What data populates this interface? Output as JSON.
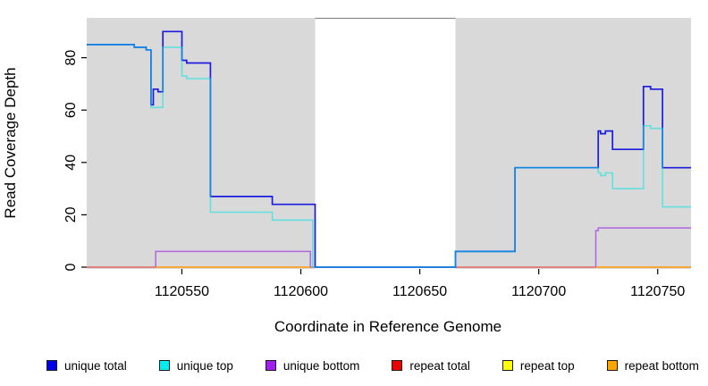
{
  "chart_data": {
    "type": "line",
    "subtype": "step-coverage",
    "xlabel": "Coordinate in Reference Genome",
    "ylabel": "Read Coverage Depth",
    "xlim": [
      1120510,
      1120764
    ],
    "ylim": [
      0,
      95
    ],
    "x_ticks": [
      1120550,
      1120600,
      1120650,
      1120700,
      1120750
    ],
    "x_tick_labels": [
      "1120550",
      "1120600",
      "1120650",
      "1120700",
      "1120750"
    ],
    "y_ticks": [
      0,
      20,
      40,
      60,
      80
    ],
    "y_tick_labels": [
      "0",
      "20",
      "40",
      "60",
      "80"
    ],
    "grid": false,
    "plot_bg_color": "#d9d9d9",
    "gap_region": {
      "from": 1120606,
      "to": 1120665,
      "fill": "#ffffff",
      "top_border_color": "#8a8a8a"
    },
    "series": [
      {
        "name": "repeat top",
        "color": "#ffff00",
        "width": 1.3,
        "opacity": 1,
        "paths": [
          [
            [
              1120510,
              0
            ],
            [
              1120764,
              0
            ]
          ]
        ]
      },
      {
        "name": "repeat total",
        "color": "#e04868",
        "width": 1.3,
        "opacity": 1,
        "paths": [
          [
            [
              1120510,
              0
            ],
            [
              1120764,
              0
            ]
          ]
        ]
      },
      {
        "name": "repeat bottom",
        "color": "#ff9f1a",
        "width": 1.6,
        "opacity": 1,
        "paths": [
          [
            [
              1120539,
              0
            ],
            [
              1120604,
              0
            ]
          ],
          [
            [
              1120724,
              0
            ],
            [
              1120764,
              0
            ]
          ]
        ]
      },
      {
        "name": "unique bottom",
        "color": "#b066e0",
        "width": 1.5,
        "opacity": 1,
        "paths": [
          [
            [
              1120539,
              0
            ],
            [
              1120539,
              6
            ],
            [
              1120604,
              6
            ],
            [
              1120604,
              0
            ]
          ],
          [
            [
              1120724,
              0
            ],
            [
              1120724,
              14
            ],
            [
              1120725,
              14
            ],
            [
              1120725,
              15
            ],
            [
              1120764,
              15
            ]
          ]
        ]
      },
      {
        "name": "unique total",
        "color": "#1c1cdf",
        "width": 1.7,
        "opacity": 1,
        "paths": [
          [
            [
              1120510,
              85
            ],
            [
              1120530,
              84
            ],
            [
              1120535,
              83
            ],
            [
              1120537,
              62
            ],
            [
              1120538,
              68
            ],
            [
              1120540,
              67
            ],
            [
              1120542,
              90
            ],
            [
              1120550,
              79
            ],
            [
              1120552,
              78
            ],
            [
              1120562,
              27
            ],
            [
              1120588,
              24
            ],
            [
              1120606,
              0
            ],
            [
              1120665,
              6
            ],
            [
              1120690,
              38
            ],
            [
              1120725,
              52
            ],
            [
              1120726,
              51
            ],
            [
              1120728,
              52
            ],
            [
              1120731,
              45
            ],
            [
              1120744,
              69
            ],
            [
              1120747,
              68
            ],
            [
              1120752,
              38
            ],
            [
              1120764,
              38
            ]
          ]
        ]
      },
      {
        "name": "unique top",
        "color": "#00e6e6",
        "width": 1.6,
        "opacity": 0.55,
        "paths": [
          [
            [
              1120510,
              85
            ],
            [
              1120530,
              84
            ],
            [
              1120535,
              83
            ],
            [
              1120537,
              61
            ],
            [
              1120542,
              84
            ],
            [
              1120550,
              73
            ],
            [
              1120552,
              72
            ],
            [
              1120562,
              21
            ],
            [
              1120588,
              18
            ],
            [
              1120605,
              0
            ],
            [
              1120665,
              6
            ],
            [
              1120690,
              38
            ],
            [
              1120725,
              36
            ],
            [
              1120726,
              35
            ],
            [
              1120728,
              36
            ],
            [
              1120731,
              30
            ],
            [
              1120744,
              54
            ],
            [
              1120747,
              53
            ],
            [
              1120752,
              23
            ],
            [
              1120764,
              23
            ]
          ]
        ]
      }
    ],
    "legend": {
      "position": "bottom",
      "items": [
        {
          "label": "unique total",
          "color": "#0000ee"
        },
        {
          "label": "unique top",
          "color": "#00eeee"
        },
        {
          "label": "unique bottom",
          "color": "#a020f0"
        },
        {
          "label": "repeat total",
          "color": "#ee0000"
        },
        {
          "label": "repeat top",
          "color": "#ffff00"
        },
        {
          "label": "repeat bottom",
          "color": "#ffa500"
        }
      ]
    }
  }
}
